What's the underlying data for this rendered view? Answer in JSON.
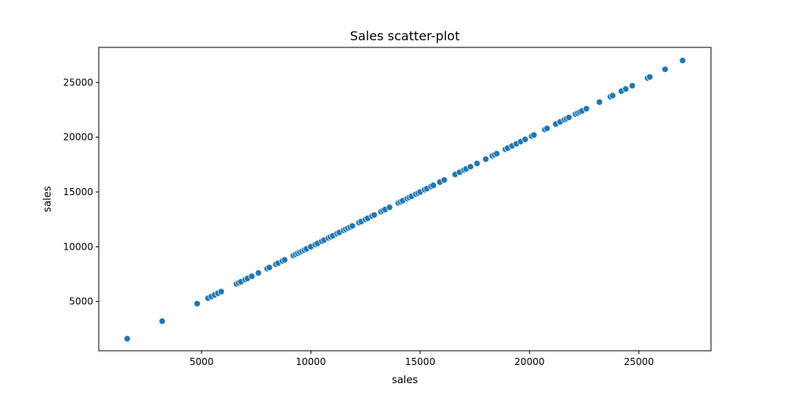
{
  "chart_data": {
    "type": "scatter",
    "title": "Sales scatter-plot",
    "xlabel": "sales",
    "ylabel": "sales",
    "xlim": [
      300,
      28300
    ],
    "ylim": [
      500,
      28200
    ],
    "xticks": [
      5000,
      10000,
      15000,
      20000,
      25000
    ],
    "yticks": [
      5000,
      10000,
      15000,
      20000,
      25000
    ],
    "grid": false,
    "point_color": "#1f77b4",
    "series": [
      {
        "x": [
          1600,
          3200,
          4800,
          5300,
          5450,
          5600,
          5750,
          5900,
          6600,
          6700,
          6800,
          7000,
          7100,
          7300,
          7600,
          8000,
          8100,
          8400,
          8500,
          8700,
          8800,
          9200,
          9300,
          9400,
          9500,
          9600,
          9700,
          9800,
          10000,
          10200,
          10300,
          10500,
          10600,
          10800,
          10900,
          11000,
          11200,
          11300,
          11500,
          11600,
          11700,
          11800,
          11900,
          12200,
          12300,
          12500,
          12600,
          12800,
          12900,
          13200,
          13300,
          13400,
          13600,
          14000,
          14100,
          14200,
          14400,
          14500,
          14600,
          14800,
          14900,
          15000,
          15200,
          15300,
          15500,
          15600,
          15900,
          16100,
          16600,
          16800,
          17000,
          17100,
          17300,
          17600,
          18000,
          18300,
          18400,
          18500,
          18900,
          19000,
          19200,
          19400,
          19600,
          19800,
          20100,
          20200,
          20700,
          20800,
          21200,
          21400,
          21600,
          21700,
          21800,
          22100,
          22200,
          22300,
          22400,
          22600,
          23200,
          23700,
          23800,
          24200,
          24400,
          24700,
          25400,
          25500,
          26200,
          27000
        ],
        "y": [
          1600,
          3200,
          4800,
          5300,
          5450,
          5600,
          5750,
          5900,
          6600,
          6700,
          6800,
          7000,
          7100,
          7300,
          7600,
          8000,
          8100,
          8400,
          8500,
          8700,
          8800,
          9200,
          9300,
          9400,
          9500,
          9600,
          9700,
          9800,
          10000,
          10200,
          10300,
          10500,
          10600,
          10800,
          10900,
          11000,
          11200,
          11300,
          11500,
          11600,
          11700,
          11800,
          11900,
          12200,
          12300,
          12500,
          12600,
          12800,
          12900,
          13200,
          13300,
          13400,
          13600,
          14000,
          14100,
          14200,
          14400,
          14500,
          14600,
          14800,
          14900,
          15000,
          15200,
          15300,
          15500,
          15600,
          15900,
          16100,
          16600,
          16800,
          17000,
          17100,
          17300,
          17600,
          18000,
          18300,
          18400,
          18500,
          18900,
          19000,
          19200,
          19400,
          19600,
          19800,
          20100,
          20200,
          20700,
          20800,
          21200,
          21400,
          21600,
          21700,
          21800,
          22100,
          22200,
          22300,
          22400,
          22600,
          23200,
          23700,
          23800,
          24200,
          24400,
          24700,
          25400,
          25500,
          26200,
          27000
        ]
      }
    ]
  }
}
